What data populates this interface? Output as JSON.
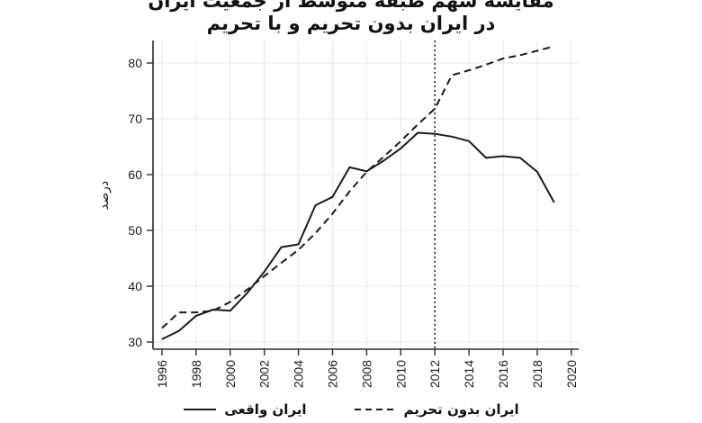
{
  "title": {
    "line1": "مقایسه سهم طبقه متوسط از جمعیت ایران",
    "line2": "در ایران بدون تحریم و با تحریم"
  },
  "chart_data": {
    "type": "line",
    "x": [
      1996,
      1997,
      1998,
      1999,
      2000,
      2001,
      2002,
      2003,
      2004,
      2005,
      2006,
      2007,
      2008,
      2009,
      2010,
      2011,
      2012,
      2013,
      2014,
      2015,
      2016,
      2017,
      2018,
      2019
    ],
    "series": [
      {
        "name": "ایران واقعی",
        "style": "solid",
        "dash": "none",
        "values": [
          30.5,
          32,
          34.7,
          35.8,
          35.6,
          38.8,
          42.6,
          47,
          47.5,
          54.5,
          56,
          61.3,
          60.6,
          62.5,
          64.7,
          67.5,
          67.3,
          66.8,
          66,
          63,
          63.3,
          63,
          60.5,
          55
        ]
      },
      {
        "name": "ایران بدون تحریم",
        "style": "dashed",
        "dash": "8 5",
        "values": [
          32.5,
          35.3,
          35.3,
          35.6,
          37.2,
          39.4,
          41.8,
          44.2,
          46.5,
          49.5,
          53,
          57,
          60.5,
          63.2,
          66,
          69,
          71.8,
          77.8,
          78.7,
          79.7,
          80.8,
          81.4,
          82.2,
          83
        ]
      }
    ],
    "ylabel": "درصد",
    "xlabel": "",
    "x_ticks": [
      1996,
      1998,
      2000,
      2002,
      2004,
      2006,
      2008,
      2010,
      2012,
      2014,
      2016,
      2018,
      2020
    ],
    "y_ticks": [
      30,
      40,
      50,
      60,
      70,
      80
    ],
    "xlim": [
      1995.5,
      2020.8
    ],
    "ylim": [
      28.7,
      84
    ],
    "grid": true,
    "legend_position": "bottom",
    "vline": {
      "x": 2012,
      "style": "dotted"
    },
    "line_color": "#1a1a1a",
    "grid_color": "#e8e8e8",
    "axis_color": "#2b2b2b"
  },
  "legend": {
    "items": [
      {
        "label": "ایران واقعی",
        "dash": "none"
      },
      {
        "label": "ایران بدون تحریم",
        "dash": "7 5"
      }
    ]
  }
}
